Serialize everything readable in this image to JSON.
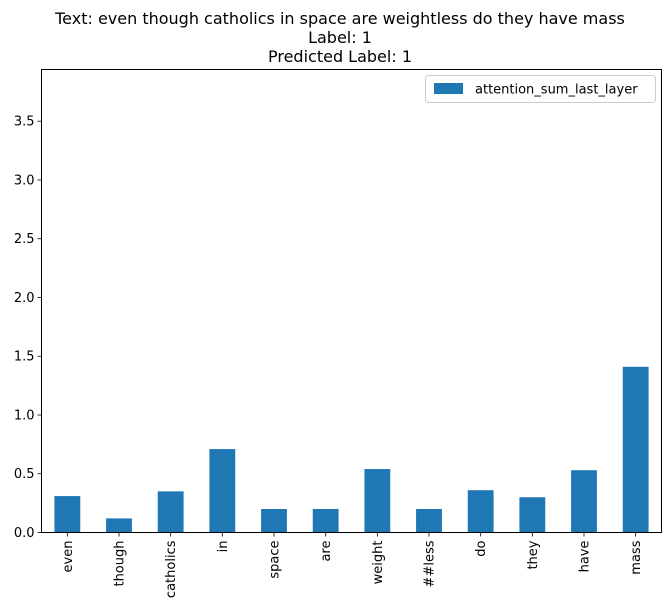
{
  "chart_data": {
    "type": "bar",
    "title_lines": [
      "Text: even though catholics in space are weightless do they have mass",
      "Label: 1",
      "Predicted Label: 1"
    ],
    "categories": [
      "even",
      "though",
      "catholics",
      "in",
      "space",
      "are",
      "weight",
      "##less",
      "do",
      "they",
      "have",
      "mass"
    ],
    "series": [
      {
        "name": "attention_sum_last_layer",
        "values": [
          0.31,
          0.12,
          0.35,
          0.71,
          0.2,
          0.2,
          0.54,
          0.2,
          0.36,
          0.3,
          0.53,
          1.41
        ],
        "color": "#1f77b4"
      }
    ],
    "xlabel": "",
    "ylabel": "",
    "ylim": [
      0,
      3.94
    ],
    "yticks": [
      0.0,
      0.5,
      1.0,
      1.5,
      2.0,
      2.5,
      3.0,
      3.5
    ],
    "ytick_labels": [
      "0.0",
      "0.5",
      "1.0",
      "1.5",
      "2.0",
      "2.5",
      "3.0",
      "3.5"
    ],
    "grid": false,
    "legend_position": "top-right"
  }
}
